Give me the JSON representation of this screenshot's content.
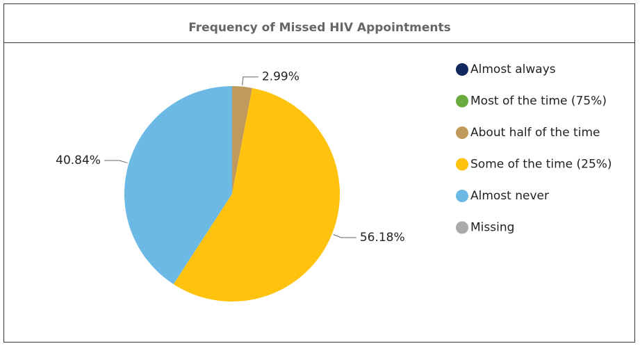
{
  "chart_data": {
    "type": "pie",
    "title": "Frequency of Missed HIV Appointments",
    "categories": [
      "Almost always",
      "Most of the time (75%)",
      "About half of the time",
      "Some of the time (25%)",
      "Almost never",
      "Missing"
    ],
    "values": [
      0,
      0,
      2.99,
      56.18,
      40.84,
      0
    ],
    "value_labels": [
      null,
      null,
      "2.99%",
      "56.18%",
      "40.84%",
      null
    ],
    "colors": [
      "#10285e",
      "#6aaa3e",
      "#bf9a5c",
      "#ffc20e",
      "#6cb9e6",
      "#aaaaaa"
    ],
    "legend": "right"
  }
}
